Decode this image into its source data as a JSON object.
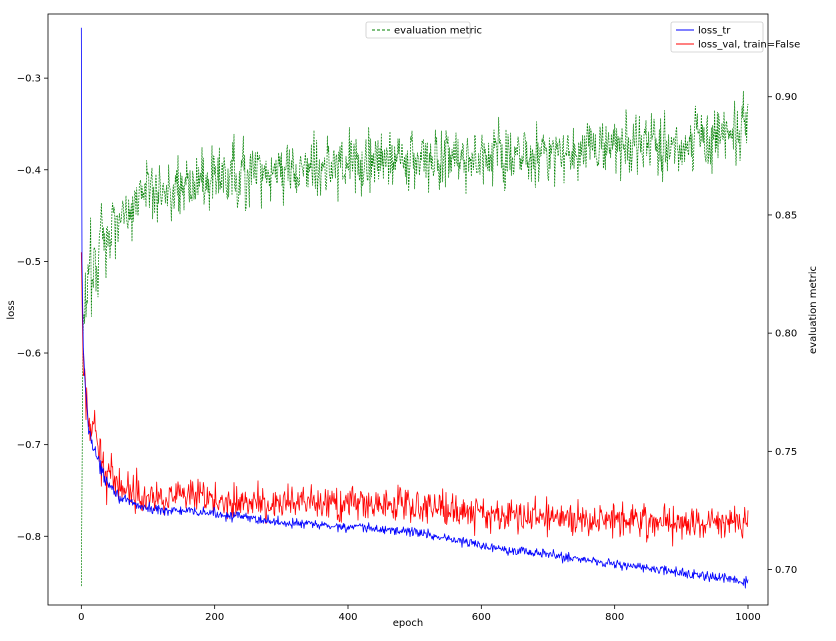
{
  "chart_data": {
    "type": "line",
    "xlabel": "epoch",
    "ylabel_left": "loss",
    "ylabel_right": "evaluation metric",
    "xlim": [
      -50,
      1030
    ],
    "ylim_left": [
      -0.875,
      -0.23
    ],
    "ylim_right": [
      0.685,
      0.935
    ],
    "grid": false,
    "x_ticks": [
      0,
      200,
      400,
      600,
      800,
      1000
    ],
    "y_left_ticks": [
      -0.8,
      -0.7,
      -0.6,
      -0.5,
      -0.4,
      -0.3
    ],
    "y_right_ticks": [
      0.7,
      0.75,
      0.8,
      0.85,
      0.9
    ],
    "x_tick_labels": [
      "0",
      "200",
      "400",
      "600",
      "800",
      "1000"
    ],
    "y_left_tick_labels": [
      "−0.8",
      "−0.7",
      "−0.6",
      "−0.5",
      "−0.4",
      "−0.3"
    ],
    "y_right_tick_labels": [
      "0.70",
      "0.75",
      "0.80",
      "0.85",
      "0.90"
    ],
    "legend_left": {
      "placement": "upper-center",
      "entries": [
        {
          "label": "evaluation metric",
          "color": "#008000",
          "style": "dashed"
        }
      ]
    },
    "legend_right": {
      "placement": "upper-right",
      "entries": [
        {
          "label": "loss_tr",
          "color": "#0000ff",
          "style": "solid"
        },
        {
          "label": "loss_val, train=False",
          "color": "#ff0000",
          "style": "solid"
        }
      ]
    },
    "series": [
      {
        "name": "loss_tr",
        "axis": "left",
        "color": "#0000ff",
        "style": "solid",
        "trend": [
          [
            0,
            -0.245
          ],
          [
            1,
            -0.5
          ],
          [
            3,
            -0.6
          ],
          [
            10,
            -0.68
          ],
          [
            30,
            -0.73
          ],
          [
            60,
            -0.76
          ],
          [
            100,
            -0.77
          ],
          [
            200,
            -0.775
          ],
          [
            300,
            -0.785
          ],
          [
            400,
            -0.79
          ],
          [
            500,
            -0.795
          ],
          [
            600,
            -0.81
          ],
          [
            700,
            -0.82
          ],
          [
            800,
            -0.83
          ],
          [
            900,
            -0.84
          ],
          [
            1000,
            -0.85
          ]
        ],
        "noise": 0.008
      },
      {
        "name": "loss_val, train=False",
        "axis": "left",
        "color": "#ff0000",
        "style": "solid",
        "trend": [
          [
            0,
            -0.49
          ],
          [
            3,
            -0.63
          ],
          [
            10,
            -0.67
          ],
          [
            30,
            -0.72
          ],
          [
            60,
            -0.745
          ],
          [
            100,
            -0.755
          ],
          [
            200,
            -0.76
          ],
          [
            300,
            -0.765
          ],
          [
            400,
            -0.765
          ],
          [
            500,
            -0.765
          ],
          [
            600,
            -0.775
          ],
          [
            700,
            -0.78
          ],
          [
            800,
            -0.78
          ],
          [
            900,
            -0.785
          ],
          [
            1000,
            -0.785
          ]
        ],
        "noise": 0.028
      },
      {
        "name": "evaluation metric",
        "axis": "right",
        "color": "#008000",
        "style": "dashed",
        "trend": [
          [
            0,
            0.693
          ],
          [
            2,
            0.78
          ],
          [
            5,
            0.81
          ],
          [
            10,
            0.82
          ],
          [
            30,
            0.84
          ],
          [
            60,
            0.85
          ],
          [
            100,
            0.86
          ],
          [
            200,
            0.865
          ],
          [
            300,
            0.868
          ],
          [
            400,
            0.872
          ],
          [
            500,
            0.873
          ],
          [
            600,
            0.874
          ],
          [
            700,
            0.876
          ],
          [
            800,
            0.879
          ],
          [
            900,
            0.88
          ],
          [
            1000,
            0.885
          ]
        ],
        "noise": 0.02
      }
    ]
  }
}
